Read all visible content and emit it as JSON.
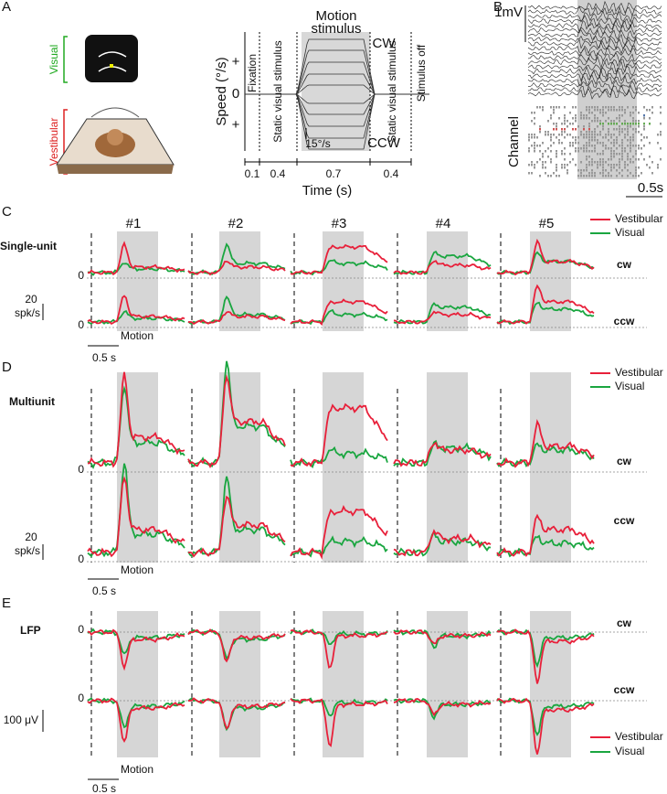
{
  "panel_a": {
    "label": "A",
    "visual": "Visual",
    "vestibular": "Vestibular",
    "plot": {
      "title_lines": [
        "Motion",
        "stimulus"
      ],
      "y_label": "Speed (°/s)",
      "plus_top": "+",
      "zero": "0",
      "plus_bottom": "+",
      "cw": "CW",
      "ccw": "CCW",
      "scale": "15°/s",
      "phases": [
        "Fixation",
        "Static visual stimulus",
        "Static visual stimulus",
        "Stimulus off"
      ],
      "durations": [
        "0.1",
        "0.4",
        "0.7",
        "0.4"
      ],
      "x_label": "Time (s)"
    }
  },
  "panel_b": {
    "label": "B",
    "scale_v": "1mV",
    "channel": "Channel",
    "scale_t": "0.5s"
  },
  "panel_c": {
    "label": "C",
    "row_title": "Single-unit",
    "units": [
      "#1",
      "#2",
      "#3",
      "#4",
      "#5"
    ],
    "legend": [
      "Vestibular",
      "Visual"
    ],
    "conditions": [
      "cw",
      "ccw"
    ],
    "zero": "0",
    "scale_y": [
      "20",
      "spk/s"
    ],
    "motion": "Motion",
    "scale_t": "0.5 s"
  },
  "panel_d": {
    "label": "D",
    "row_title": "Multiunit",
    "legend": [
      "Vestibular",
      "Visual"
    ],
    "conditions": [
      "cw",
      "ccw"
    ],
    "zero": "0",
    "scale_y": [
      "20",
      "spk/s"
    ],
    "motion": "Motion",
    "scale_t": "0.5 s"
  },
  "panel_e": {
    "label": "E",
    "row_title": "LFP",
    "legend": [
      "Vestibular",
      "Visual"
    ],
    "conditions": [
      "cw",
      "ccw"
    ],
    "zero": "0",
    "scale_y": "100 μV",
    "motion": "Motion",
    "scale_t": "0.5 s"
  }
}
